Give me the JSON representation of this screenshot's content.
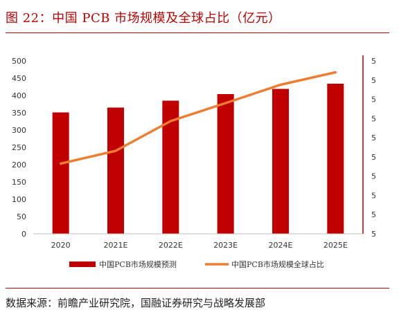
{
  "title": "图 22：中国 PCB 市场规模及全球占比（亿元）",
  "source": "数据来源：前瞻产业研究院，国融证券研究与战略发展部",
  "colors": {
    "bar": "#c00000",
    "line": "#ed7d31",
    "accent": "#c00000"
  },
  "chart_data": {
    "type": "bar",
    "categories": [
      "2020",
      "2021E",
      "2022E",
      "2023E",
      "2024E",
      "2025E"
    ],
    "ylim": [
      0,
      500
    ],
    "yticks": [
      0,
      50,
      100,
      150,
      200,
      250,
      300,
      350,
      400,
      450,
      500
    ],
    "y2ticks": [
      "5",
      "5",
      "5",
      "5",
      "5",
      "5",
      "5",
      "5",
      "5",
      "5"
    ],
    "legend_position": "bottom",
    "grid": false,
    "series": [
      {
        "name": "中国PCB市场规模预测",
        "type": "bar",
        "values": [
          351,
          365,
          385,
          404,
          419,
          434
        ]
      },
      {
        "name": "中国PCB市场规模全球占比",
        "type": "line",
        "axis": "right",
        "values_in_left_axis_units": [
          203,
          240,
          326,
          378,
          431,
          467
        ]
      }
    ]
  }
}
